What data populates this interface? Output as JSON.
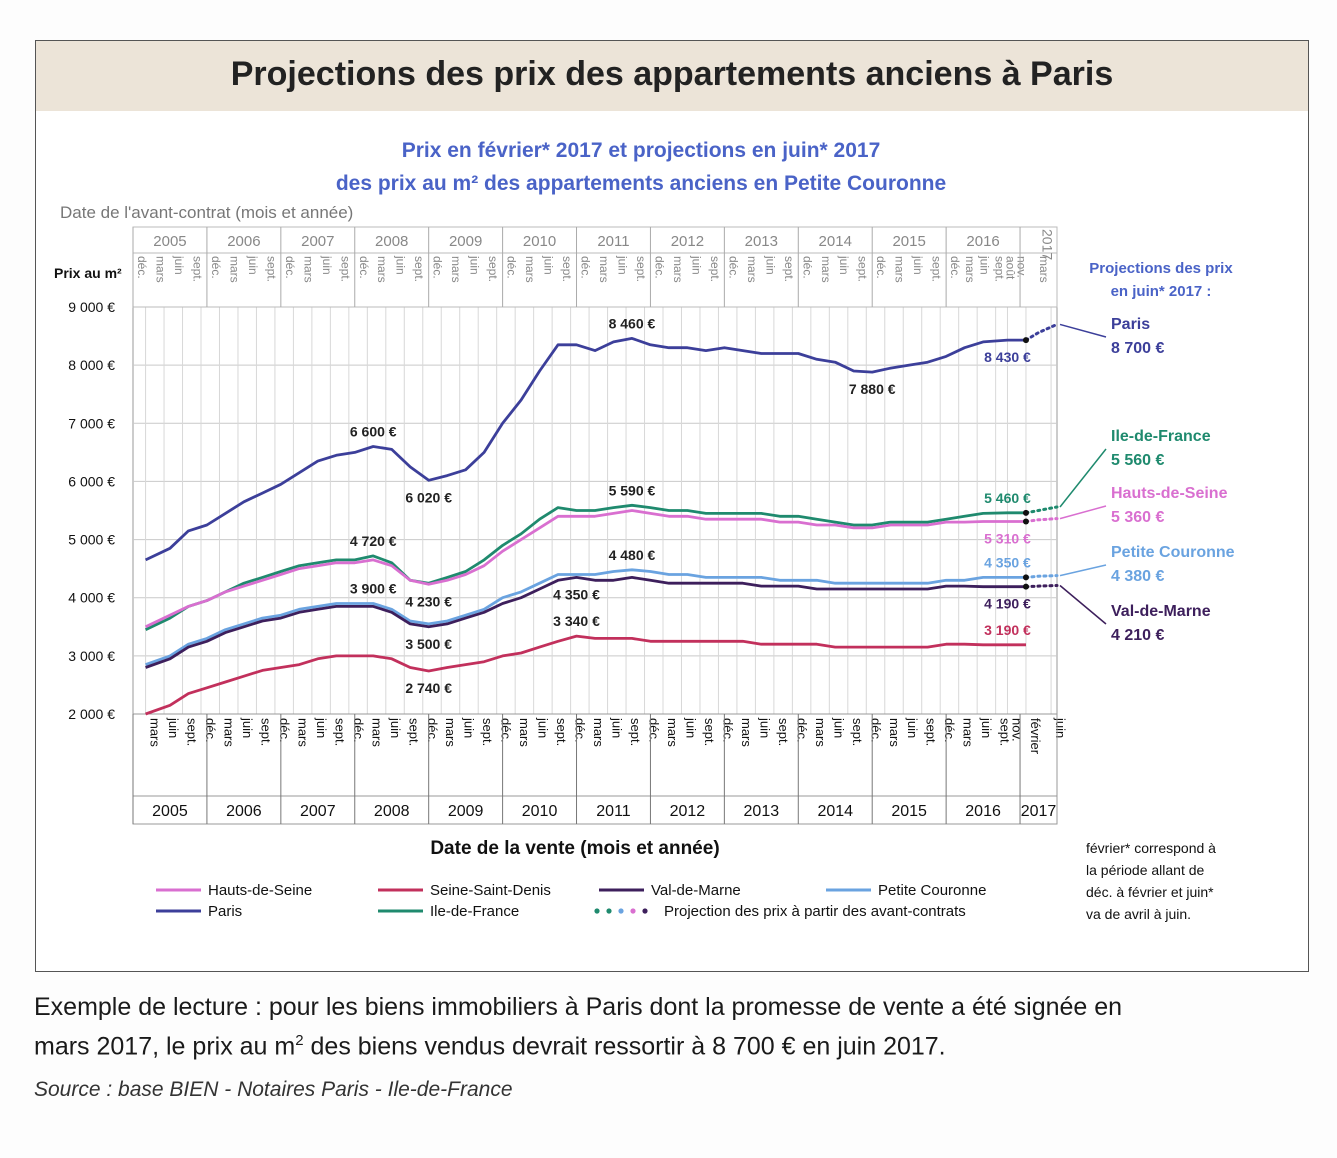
{
  "title": "Projections des prix des appartements anciens à Paris",
  "subtitle_line1": "Prix en février* 2017 et projections en juin* 2017",
  "subtitle_line2": "des prix au m² des appartements anciens en Petite Couronne",
  "top_axis_label": "Date de l'avant-contrat (mois et année)",
  "y_axis_label": "Prix au m²",
  "x_axis_label": "Date de la vente (mois et année)",
  "projections_heading": [
    "Projections des prix",
    "en juin* 2017 :"
  ],
  "footnote": [
    "février* correspond à",
    "la période allant de",
    "déc. à février et juin*",
    "va de avril à juin."
  ],
  "caption_line1": "Exemple de lecture : pour les biens immobiliers à Paris dont la promesse de vente a été signée en",
  "caption_line2_a": "mars 2017, le prix au m",
  "caption_line2_sup": "2",
  "caption_line2_b": " des biens vendus devrait ressortir à 8 700 € en juin 2017.",
  "source": "Source : base BIEN - Notaires Paris - Ile-de-France",
  "chart_data": {
    "type": "line",
    "y_ticks": [
      "9 000 €",
      "8 000 €",
      "7 000 €",
      "6 000 €",
      "5 000 €",
      "4 000 €",
      "3 000 €",
      "2 000 €"
    ],
    "ylim": [
      2000,
      9000
    ],
    "x_years_bottom": [
      "2005",
      "2006",
      "2007",
      "2008",
      "2009",
      "2010",
      "2011",
      "2012",
      "2013",
      "2014",
      "2015",
      "2016",
      "2017"
    ],
    "x_months_bottom": [
      "mars",
      "juin",
      "sept.",
      "déc."
    ],
    "x_months_bottom_2016": [
      "mars",
      "juin",
      "sept.",
      "nov."
    ],
    "x_months_bottom_2017": [
      "février",
      "juin"
    ],
    "x_years_top": [
      "2005",
      "2006",
      "2007",
      "2008",
      "2009",
      "2010",
      "2011",
      "2012",
      "2013",
      "2014",
      "2015",
      "2016",
      "2017"
    ],
    "x_months_top": [
      "déc.",
      "mars",
      "juin",
      "sept."
    ],
    "x_months_top_2016_extra": [
      "août",
      "nov."
    ],
    "x_months_top_2017": [
      "mars"
    ],
    "x": [
      2005.17,
      2005.5,
      2005.75,
      2006.0,
      2006.25,
      2006.5,
      2006.75,
      2007.0,
      2007.25,
      2007.5,
      2007.75,
      2008.0,
      2008.25,
      2008.5,
      2008.75,
      2009.0,
      2009.25,
      2009.5,
      2009.75,
      2010.0,
      2010.25,
      2010.5,
      2010.75,
      2011.0,
      2011.25,
      2011.5,
      2011.75,
      2012.0,
      2012.25,
      2012.5,
      2012.75,
      2013.0,
      2013.25,
      2013.5,
      2013.75,
      2014.0,
      2014.25,
      2014.5,
      2014.75,
      2015.0,
      2015.25,
      2015.5,
      2015.75,
      2016.0,
      2016.25,
      2016.5,
      2016.83,
      2017.08
    ],
    "series": [
      {
        "name": "Paris",
        "color": "#3c3f9a",
        "values": [
          4650,
          4850,
          5150,
          5250,
          5450,
          5650,
          5800,
          5950,
          6150,
          6350,
          6450,
          6500,
          6600,
          6550,
          6250,
          6020,
          6100,
          6200,
          6500,
          7000,
          7400,
          7900,
          8350,
          8350,
          8250,
          8400,
          8460,
          8350,
          8300,
          8300,
          8250,
          8300,
          8250,
          8200,
          8200,
          8200,
          8100,
          8050,
          7900,
          7880,
          7950,
          8000,
          8050,
          8150,
          8300,
          8400,
          8430,
          8430
        ]
      },
      {
        "name": "Ile-de-France",
        "color": "#1f8a6e",
        "values": [
          3450,
          3650,
          3850,
          3950,
          4100,
          4250,
          4350,
          4450,
          4550,
          4600,
          4650,
          4650,
          4720,
          4600,
          4300,
          4250,
          4350,
          4450,
          4650,
          4900,
          5100,
          5350,
          5550,
          5500,
          5500,
          5550,
          5590,
          5550,
          5500,
          5500,
          5450,
          5450,
          5450,
          5450,
          5400,
          5400,
          5350,
          5300,
          5250,
          5250,
          5300,
          5300,
          5300,
          5350,
          5400,
          5450,
          5460,
          5460
        ]
      },
      {
        "name": "Hauts-de-Seine",
        "color": "#d96fd0",
        "values": [
          3500,
          3700,
          3850,
          3950,
          4100,
          4200,
          4300,
          4400,
          4500,
          4550,
          4600,
          4600,
          4650,
          4550,
          4300,
          4230,
          4300,
          4400,
          4550,
          4800,
          5000,
          5200,
          5400,
          5400,
          5400,
          5450,
          5500,
          5450,
          5400,
          5400,
          5350,
          5350,
          5350,
          5350,
          5300,
          5300,
          5250,
          5250,
          5200,
          5200,
          5250,
          5250,
          5250,
          5300,
          5300,
          5310,
          5310,
          5310
        ]
      },
      {
        "name": "Petite Couronne",
        "color": "#6aa3e0",
        "values": [
          2850,
          3000,
          3200,
          3300,
          3450,
          3550,
          3650,
          3700,
          3800,
          3850,
          3900,
          3900,
          3900,
          3800,
          3600,
          3550,
          3600,
          3700,
          3800,
          4000,
          4100,
          4250,
          4400,
          4400,
          4400,
          4450,
          4480,
          4450,
          4400,
          4400,
          4350,
          4350,
          4350,
          4350,
          4300,
          4300,
          4300,
          4250,
          4250,
          4250,
          4250,
          4250,
          4250,
          4300,
          4300,
          4350,
          4350,
          4350
        ]
      },
      {
        "name": "Val-de-Marne",
        "color": "#3d1f5c",
        "values": [
          2800,
          2950,
          3150,
          3250,
          3400,
          3500,
          3600,
          3650,
          3750,
          3800,
          3850,
          3850,
          3850,
          3750,
          3550,
          3500,
          3550,
          3650,
          3750,
          3900,
          4000,
          4150,
          4300,
          4350,
          4300,
          4300,
          4350,
          4300,
          4250,
          4250,
          4250,
          4250,
          4250,
          4200,
          4200,
          4200,
          4150,
          4150,
          4150,
          4150,
          4150,
          4150,
          4150,
          4200,
          4200,
          4190,
          4190,
          4190
        ]
      },
      {
        "name": "Seine-Saint-Denis",
        "color": "#c2305c",
        "values": [
          2000,
          2150,
          2350,
          2450,
          2550,
          2650,
          2750,
          2800,
          2850,
          2950,
          3000,
          3000,
          3000,
          2950,
          2800,
          2740,
          2800,
          2850,
          2900,
          3000,
          3050,
          3150,
          3250,
          3340,
          3300,
          3300,
          3300,
          3250,
          3250,
          3250,
          3250,
          3250,
          3250,
          3200,
          3200,
          3200,
          3200,
          3150,
          3150,
          3150,
          3150,
          3150,
          3150,
          3200,
          3200,
          3190,
          3190,
          3190
        ]
      }
    ],
    "projection_x": [
      2017.08,
      2017.25,
      2017.5
    ],
    "projections": [
      {
        "name": "Paris",
        "values": [
          8430,
          8560,
          8700
        ]
      },
      {
        "name": "Ile-de-France",
        "values": [
          5460,
          5500,
          5560
        ]
      },
      {
        "name": "Hauts-de-Seine",
        "values": [
          5310,
          5340,
          5360
        ]
      },
      {
        "name": "Petite Couronne",
        "values": [
          4350,
          4370,
          4380
        ]
      },
      {
        "name": "Val-de-Marne",
        "values": [
          4190,
          4200,
          4210
        ]
      }
    ],
    "annotations": [
      {
        "text": "8 460 €",
        "x": 2011.75,
        "y": 8460,
        "pos": "above",
        "color": "#222"
      },
      {
        "text": "7 880 €",
        "x": 2015.0,
        "y": 7880,
        "pos": "below",
        "color": "#222"
      },
      {
        "text": "6 600 €",
        "x": 2008.25,
        "y": 6600,
        "pos": "above",
        "color": "#222"
      },
      {
        "text": "6 020 €",
        "x": 2009.0,
        "y": 6020,
        "pos": "below",
        "color": "#222"
      },
      {
        "text": "5 590 €",
        "x": 2011.75,
        "y": 5590,
        "pos": "above",
        "color": "#222"
      },
      {
        "text": "4 720 €",
        "x": 2008.25,
        "y": 4720,
        "pos": "above",
        "color": "#222"
      },
      {
        "text": "4 480 €",
        "x": 2011.75,
        "y": 4480,
        "pos": "above",
        "color": "#222"
      },
      {
        "text": "3 900 €",
        "x": 2008.25,
        "y": 3900,
        "pos": "above",
        "color": "#222"
      },
      {
        "text": "4 230 €",
        "x": 2009.0,
        "y": 4230,
        "pos": "below",
        "color": "#222"
      },
      {
        "text": "4 350 €",
        "x": 2011.0,
        "y": 4350,
        "pos": "below",
        "color": "#222"
      },
      {
        "text": "3 500 €",
        "x": 2009.0,
        "y": 3500,
        "pos": "below",
        "color": "#222"
      },
      {
        "text": "3 340 €",
        "x": 2011.0,
        "y": 3340,
        "pos": "above",
        "color": "#222"
      },
      {
        "text": "2 740 €",
        "x": 2009.0,
        "y": 2740,
        "pos": "below",
        "color": "#222"
      },
      {
        "text": "8 430 €",
        "x": 2016.83,
        "y": 8430,
        "pos": "below",
        "color": "#3c3f9a"
      },
      {
        "text": "5 460 €",
        "x": 2016.83,
        "y": 5460,
        "pos": "above",
        "color": "#1f8a6e"
      },
      {
        "text": "5 310 €",
        "x": 2016.83,
        "y": 5310,
        "pos": "below",
        "color": "#d96fd0"
      },
      {
        "text": "4 350 €",
        "x": 2016.83,
        "y": 4350,
        "pos": "above",
        "color": "#6aa3e0"
      },
      {
        "text": "4 190 €",
        "x": 2016.83,
        "y": 4190,
        "pos": "below",
        "color": "#3d1f5c"
      },
      {
        "text": "3 190 €",
        "x": 2016.83,
        "y": 3190,
        "pos": "above",
        "color": "#c2305c"
      }
    ],
    "right_labels": [
      {
        "name": "Paris",
        "value": "8 700 €",
        "color": "#3c3f9a",
        "y": 8700
      },
      {
        "name": "Ile-de-France",
        "value": "5 560 €",
        "color": "#1f8a6e",
        "y": 5560
      },
      {
        "name": "Hauts-de-Seine",
        "value": "5 360 €",
        "color": "#d96fd0",
        "y": 5360
      },
      {
        "name": "Petite Couronne",
        "value": "4 380 €",
        "color": "#6aa3e0",
        "y": 4380
      },
      {
        "name": "Val-de-Marne",
        "value": "4 210 €",
        "color": "#3d1f5c",
        "y": 4210
      }
    ],
    "legend": [
      {
        "label": "Hauts-de-Seine",
        "color": "#d96fd0"
      },
      {
        "label": "Seine-Saint-Denis",
        "color": "#c2305c"
      },
      {
        "label": "Val-de-Marne",
        "color": "#3d1f5c"
      },
      {
        "label": "Petite Couronne",
        "color": "#6aa3e0"
      },
      {
        "label": "Paris",
        "color": "#3c3f9a"
      },
      {
        "label": "Ile-de-France",
        "color": "#1f8a6e"
      },
      {
        "label": "Projection des prix à partir des avant-contrats",
        "color": "#3c3f9a"
      }
    ]
  }
}
